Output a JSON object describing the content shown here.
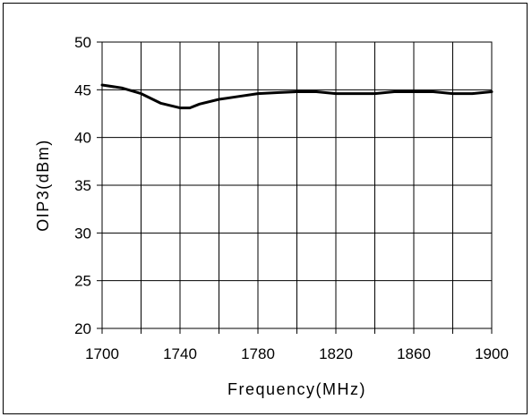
{
  "chart_data": {
    "type": "line",
    "title": "",
    "xlabel": "Frequency(MHz)",
    "ylabel": "OIP3(dBm)",
    "xlim": [
      1700,
      1900
    ],
    "ylim": [
      20,
      50
    ],
    "x_ticks": [
      1700,
      1740,
      1780,
      1820,
      1860,
      1900
    ],
    "x_gridlines": [
      1700,
      1720,
      1740,
      1760,
      1780,
      1800,
      1820,
      1840,
      1860,
      1880,
      1900
    ],
    "y_ticks": [
      20,
      25,
      30,
      35,
      40,
      45,
      50
    ],
    "grid": true,
    "legend": "none",
    "line_color": "#000000",
    "series": [
      {
        "x": [
          1700,
          1710,
          1720,
          1730,
          1740,
          1745,
          1750,
          1760,
          1770,
          1780,
          1790,
          1800,
          1810,
          1820,
          1830,
          1840,
          1850,
          1860,
          1870,
          1880,
          1890,
          1900
        ],
        "values": [
          45.5,
          45.2,
          44.6,
          43.6,
          43.1,
          43.1,
          43.5,
          44.0,
          44.3,
          44.6,
          44.7,
          44.8,
          44.8,
          44.6,
          44.6,
          44.6,
          44.8,
          44.8,
          44.8,
          44.6,
          44.6,
          44.8
        ]
      }
    ]
  }
}
